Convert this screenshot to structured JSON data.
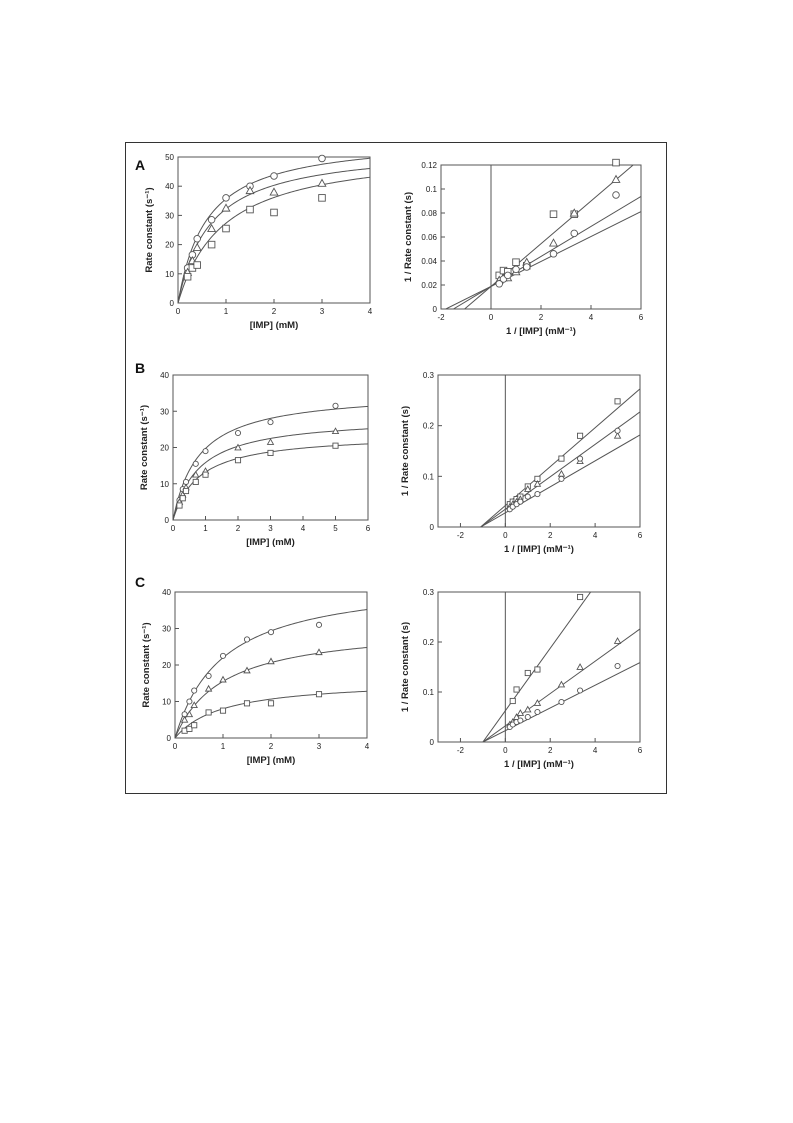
{
  "figure": {
    "panel_labels": [
      "A",
      "B",
      "C"
    ]
  },
  "chart_data": [
    {
      "id": "A-left",
      "panel": "A",
      "type": "scatter",
      "title": "",
      "xlabel": "[IMP] (mM)",
      "ylabel": "Rate constant (s⁻¹)",
      "xlim": [
        0,
        4
      ],
      "ylim": [
        0,
        50
      ],
      "xticks": [
        0,
        1,
        2,
        3,
        4
      ],
      "yticks": [
        0,
        10,
        20,
        30,
        40,
        50
      ],
      "vertical_line_x": null,
      "grid": false,
      "series": [
        {
          "marker": "circle",
          "x": [
            0.2,
            0.3,
            0.4,
            0.7,
            1.0,
            1.5,
            2.0,
            3.0
          ],
          "y": [
            12,
            16.5,
            22,
            28.5,
            36,
            40,
            43.5,
            49.5
          ]
        },
        {
          "marker": "triangle",
          "x": [
            0.2,
            0.3,
            0.4,
            0.7,
            1.0,
            1.5,
            2.0,
            3.0
          ],
          "y": [
            10.5,
            14.5,
            19,
            25.5,
            32.5,
            38.5,
            38,
            41
          ]
        },
        {
          "marker": "square",
          "x": [
            0.2,
            0.3,
            0.4,
            0.7,
            1.0,
            1.5,
            2.0,
            3.0
          ],
          "y": [
            9,
            12,
            13,
            20,
            25.5,
            32,
            31,
            36
          ]
        }
      ],
      "fits": [
        {
          "form": "mm",
          "vmax": 57,
          "km": 0.6
        },
        {
          "form": "mm",
          "vmax": 53.8,
          "km": 0.67
        },
        {
          "form": "mm",
          "vmax": 53.3,
          "km": 0.95
        }
      ]
    },
    {
      "id": "A-right",
      "panel": "A",
      "type": "scatter",
      "title": "",
      "xlabel": "1 / [IMP] (mM⁻¹)",
      "ylabel": "1 / Rate constant (s)",
      "xlim": [
        -2,
        6
      ],
      "ylim": [
        0,
        0.12
      ],
      "xticks": [
        -2,
        0,
        2,
        4,
        6
      ],
      "yticks": [
        0,
        0.02,
        0.04,
        0.06,
        0.08,
        0.1,
        0.12
      ],
      "xtick_labels": [
        "-2",
        "0",
        "2",
        "4",
        "6"
      ],
      "ytick_labels": [
        "0",
        "0.02",
        "0.04",
        "0.06",
        "0.08",
        "0.1",
        "0.12"
      ],
      "vertical_line_x": 0,
      "grid": false,
      "series": [
        {
          "marker": "square",
          "x": [
            0.33,
            0.5,
            0.67,
            1.0,
            1.43,
            2.5,
            3.33,
            5.0
          ],
          "y": [
            0.028,
            0.032,
            0.031,
            0.039,
            0.036,
            0.079,
            0.079,
            0.122
          ]
        },
        {
          "marker": "triangle",
          "x": [
            0.33,
            0.5,
            0.67,
            1.0,
            1.43,
            2.5,
            3.33,
            5.0
          ],
          "y": [
            0.024,
            0.026,
            0.026,
            0.031,
            0.039,
            0.055,
            0.08,
            0.108
          ]
        },
        {
          "marker": "circle",
          "x": [
            0.33,
            0.5,
            0.67,
            1.0,
            1.43,
            2.5,
            3.33,
            5.0
          ],
          "y": [
            0.021,
            0.025,
            0.028,
            0.033,
            0.035,
            0.046,
            0.063,
            0.095
          ]
        }
      ],
      "fits": [
        {
          "form": "linear",
          "slope": 0.0178,
          "intercept": 0.0188
        },
        {
          "form": "linear",
          "slope": 0.0125,
          "intercept": 0.0188
        },
        {
          "form": "linear",
          "slope": 0.0104,
          "intercept": 0.0188
        }
      ]
    },
    {
      "id": "B-left",
      "panel": "B",
      "type": "scatter",
      "title": "",
      "xlabel": "[IMP] (mM)",
      "ylabel": "Rate constant (s⁻¹)",
      "xlim": [
        0,
        6
      ],
      "ylim": [
        0,
        40
      ],
      "xticks": [
        0,
        1,
        2,
        3,
        4,
        5,
        6
      ],
      "yticks": [
        0,
        10,
        20,
        30,
        40
      ],
      "vertical_line_x": null,
      "grid": false,
      "series": [
        {
          "marker": "circle",
          "x": [
            0.2,
            0.3,
            0.4,
            0.7,
            1.0,
            2.0,
            3.0,
            5.0
          ],
          "y": [
            5.5,
            8.5,
            10.5,
            15.5,
            19,
            24,
            27,
            31.5
          ]
        },
        {
          "marker": "triangle",
          "x": [
            0.2,
            0.3,
            0.4,
            0.7,
            1.0,
            2.0,
            3.0,
            5.0
          ],
          "y": [
            5,
            7,
            9,
            12.5,
            13.5,
            20,
            21.5,
            24.5
          ]
        },
        {
          "marker": "square",
          "x": [
            0.2,
            0.3,
            0.4,
            0.7,
            1.0,
            2.0,
            3.0,
            5.0
          ],
          "y": [
            4,
            6,
            8,
            10.5,
            12.5,
            16.5,
            18.5,
            20.5
          ]
        }
      ],
      "fits": [
        {
          "form": "mm",
          "vmax": 35.5,
          "km": 0.8
        },
        {
          "form": "mm",
          "vmax": 28.5,
          "km": 0.8
        },
        {
          "form": "mm",
          "vmax": 23.8,
          "km": 0.8
        }
      ]
    },
    {
      "id": "B-right",
      "panel": "B",
      "type": "scatter",
      "title": "",
      "xlabel": "1 / [IMP] (mM⁻¹)",
      "ylabel": "1 / Rate constant (s)",
      "xlim": [
        -3,
        6
      ],
      "ylim": [
        0,
        0.3
      ],
      "xticks": [
        -2,
        0,
        2,
        4,
        6
      ],
      "yticks": [
        0,
        0.1,
        0.2,
        0.3
      ],
      "xtick_labels": [
        "-2",
        "0",
        "2",
        "4",
        "6"
      ],
      "ytick_labels": [
        "0",
        "0.1",
        "0.2",
        "0.3"
      ],
      "vertical_line_x": 0,
      "grid": false,
      "series": [
        {
          "marker": "square",
          "x": [
            0.2,
            0.33,
            0.5,
            0.67,
            1.0,
            1.43,
            2.5,
            3.33,
            5.0
          ],
          "y": [
            0.045,
            0.05,
            0.055,
            0.06,
            0.08,
            0.095,
            0.135,
            0.18,
            0.248
          ]
        },
        {
          "marker": "triangle",
          "x": [
            0.2,
            0.33,
            0.5,
            0.67,
            1.0,
            1.43,
            2.5,
            3.33,
            5.0
          ],
          "y": [
            0.04,
            0.045,
            0.05,
            0.055,
            0.075,
            0.085,
            0.105,
            0.13,
            0.18
          ]
        },
        {
          "marker": "circle",
          "x": [
            0.2,
            0.33,
            0.5,
            0.67,
            1.0,
            1.43,
            2.5,
            3.33,
            5.0
          ],
          "y": [
            0.035,
            0.04,
            0.045,
            0.05,
            0.06,
            0.065,
            0.095,
            0.135,
            0.19
          ]
        }
      ],
      "fits": [
        {
          "form": "linear",
          "slope": 0.0384,
          "intercept": 0.0423
        },
        {
          "form": "linear",
          "slope": 0.032,
          "intercept": 0.0351
        },
        {
          "form": "linear",
          "slope": 0.0256,
          "intercept": 0.0281
        }
      ]
    },
    {
      "id": "C-left",
      "panel": "C",
      "type": "scatter",
      "title": "",
      "xlabel": "[IMP] (mM)",
      "ylabel": "Rate constant (s⁻¹)",
      "xlim": [
        0,
        4
      ],
      "ylim": [
        0,
        40
      ],
      "xticks": [
        0,
        1,
        2,
        3,
        4
      ],
      "yticks": [
        0,
        10,
        20,
        30,
        40
      ],
      "vertical_line_x": null,
      "grid": false,
      "series": [
        {
          "marker": "circle",
          "x": [
            0.2,
            0.3,
            0.4,
            0.7,
            1.0,
            1.5,
            2.0,
            3.0
          ],
          "y": [
            6.5,
            10,
            13,
            17,
            22.5,
            27,
            29,
            31
          ]
        },
        {
          "marker": "triangle",
          "x": [
            0.2,
            0.3,
            0.4,
            0.7,
            1.0,
            1.5,
            2.0,
            3.0
          ],
          "y": [
            5,
            6.5,
            9,
            13.5,
            16,
            18.5,
            21,
            23.5
          ]
        },
        {
          "marker": "square",
          "x": [
            0.2,
            0.3,
            0.4,
            0.7,
            1.0,
            1.5,
            2.0,
            3.0
          ],
          "y": [
            2,
            2.5,
            3.5,
            7,
            7.5,
            9.5,
            9.5,
            12
          ]
        }
      ],
      "fits": [
        {
          "form": "mm",
          "vmax": 44,
          "km": 1.0
        },
        {
          "form": "mm",
          "vmax": 31,
          "km": 1.0
        },
        {
          "form": "mm",
          "vmax": 16,
          "km": 1.0
        }
      ]
    },
    {
      "id": "C-right",
      "panel": "C",
      "type": "scatter",
      "title": "",
      "xlabel": "1 / [IMP] (mM⁻¹)",
      "ylabel": "1 / Rate constant (s)",
      "xlim": [
        -3,
        6
      ],
      "ylim": [
        0,
        0.3
      ],
      "xticks": [
        -2,
        0,
        2,
        4,
        6
      ],
      "yticks": [
        0,
        0.1,
        0.2,
        0.3
      ],
      "xtick_labels": [
        "-2",
        "0",
        "2",
        "4",
        "6"
      ],
      "ytick_labels": [
        "0",
        "0.1",
        "0.2",
        "0.3"
      ],
      "vertical_line_x": 0,
      "grid": false,
      "series": [
        {
          "marker": "square",
          "x": [
            0.33,
            0.5,
            1.0,
            1.43,
            3.33
          ],
          "y": [
            0.082,
            0.105,
            0.138,
            0.145,
            0.29
          ]
        },
        {
          "marker": "triangle",
          "x": [
            0.2,
            0.33,
            0.5,
            0.67,
            1.0,
            1.43,
            2.5,
            3.33,
            5.0
          ],
          "y": [
            0.035,
            0.04,
            0.05,
            0.058,
            0.065,
            0.078,
            0.115,
            0.15,
            0.202
          ]
        },
        {
          "marker": "circle",
          "x": [
            0.2,
            0.33,
            0.5,
            0.67,
            1.0,
            1.43,
            2.5,
            3.33,
            5.0
          ],
          "y": [
            0.03,
            0.035,
            0.04,
            0.043,
            0.05,
            0.06,
            0.08,
            0.103,
            0.152
          ]
        }
      ],
      "fits": [
        {
          "form": "linear",
          "slope": 0.0625,
          "intercept": 0.0625
        },
        {
          "form": "linear",
          "slope": 0.0323,
          "intercept": 0.0323
        },
        {
          "form": "linear",
          "slope": 0.0227,
          "intercept": 0.0227
        }
      ]
    }
  ]
}
